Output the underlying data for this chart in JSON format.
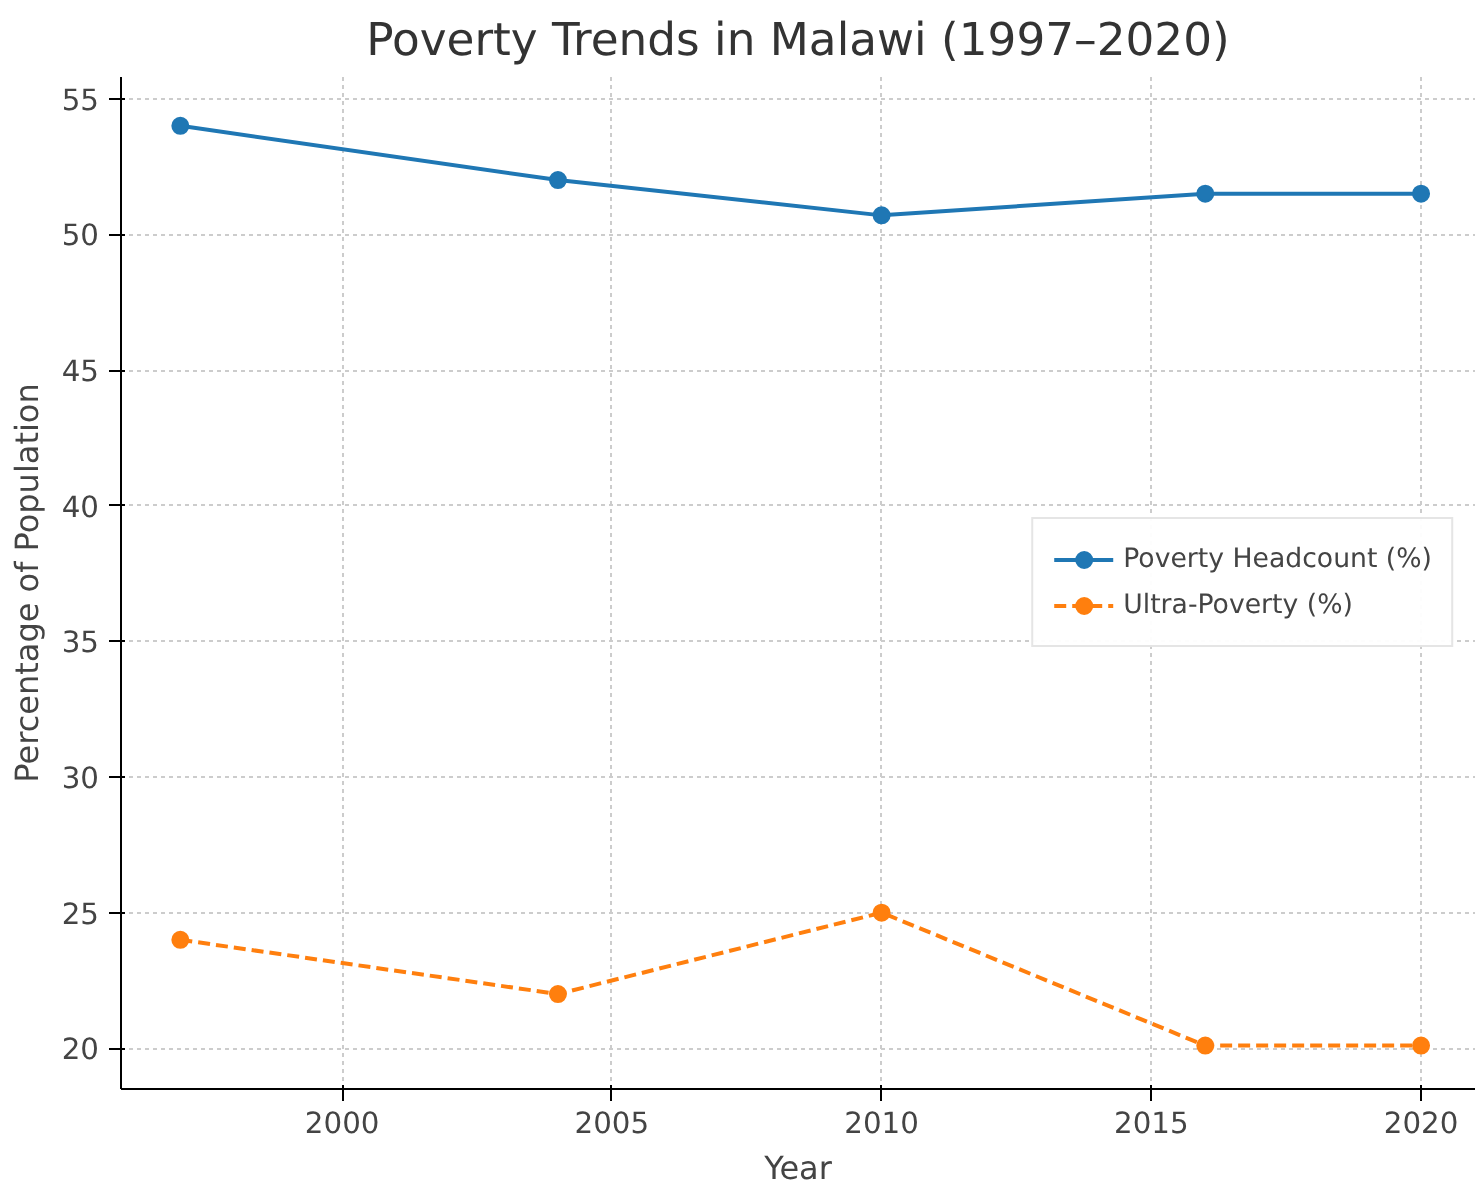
{
  "chart_data": {
    "type": "line",
    "title": "Poverty Trends in Malawi (1997–2020)",
    "xlabel": "Year",
    "ylabel": "Percentage of Population",
    "x": [
      1997,
      2004,
      2010,
      2016,
      2020
    ],
    "series": [
      {
        "name": "Poverty Headcount (%)",
        "color": "#1f77b4",
        "values": [
          54.0,
          52.0,
          50.7,
          51.5,
          51.5
        ],
        "line_style": "solid"
      },
      {
        "name": "Ultra-Poverty (%)",
        "color": "#ff7f0e",
        "values": [
          24.0,
          22.0,
          25.0,
          20.1,
          20.1
        ],
        "line_style": "dashed"
      }
    ],
    "xlim": [
      1995.9,
      2021.0
    ],
    "ylim": [
      18.5,
      55.8
    ],
    "xticks": [
      2000,
      2005,
      2010,
      2015,
      2020
    ],
    "yticks": [
      20,
      25,
      30,
      35,
      40,
      45,
      50,
      55
    ],
    "grid": true,
    "legend": "right",
    "marker": "circle"
  }
}
